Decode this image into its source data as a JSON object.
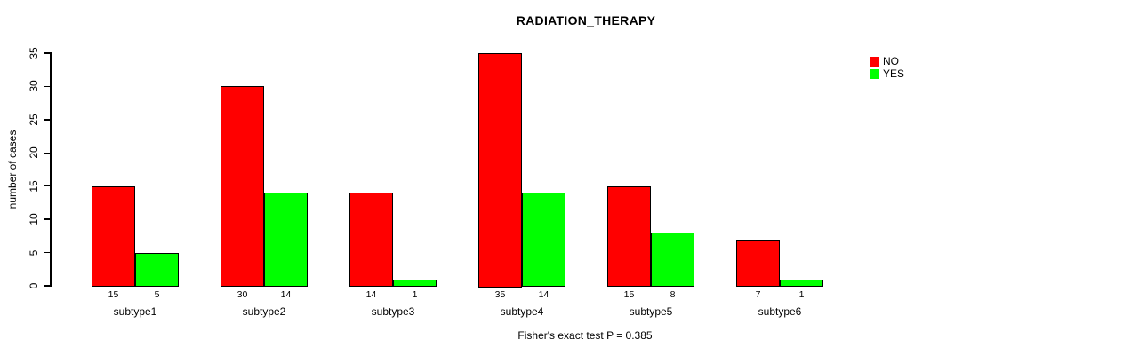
{
  "chart_data": {
    "type": "bar",
    "title": "RADIATION_THERAPY",
    "ylabel": "number of cases",
    "xlabel": "",
    "categories": [
      "subtype1",
      "subtype2",
      "subtype3",
      "subtype4",
      "subtype5",
      "subtype6"
    ],
    "series": [
      {
        "name": "NO",
        "color": "#FF0000",
        "values": [
          15,
          30,
          14,
          35,
          15,
          7
        ]
      },
      {
        "name": "YES",
        "color": "#00FF00",
        "values": [
          5,
          14,
          1,
          14,
          8,
          1
        ]
      }
    ],
    "bar_value_labels": [
      [
        "15",
        "5"
      ],
      [
        "30",
        "14"
      ],
      [
        "14",
        "1"
      ],
      [
        "35",
        "14"
      ],
      [
        "15",
        "8"
      ],
      [
        "7",
        "1"
      ]
    ],
    "ylim": [
      0,
      35
    ],
    "yticks": [
      "0",
      "5",
      "10",
      "15",
      "20",
      "25",
      "30",
      "35"
    ],
    "grid": false,
    "legend_position": "top-right",
    "footnote": "Fisher's exact test P = 0.385"
  }
}
